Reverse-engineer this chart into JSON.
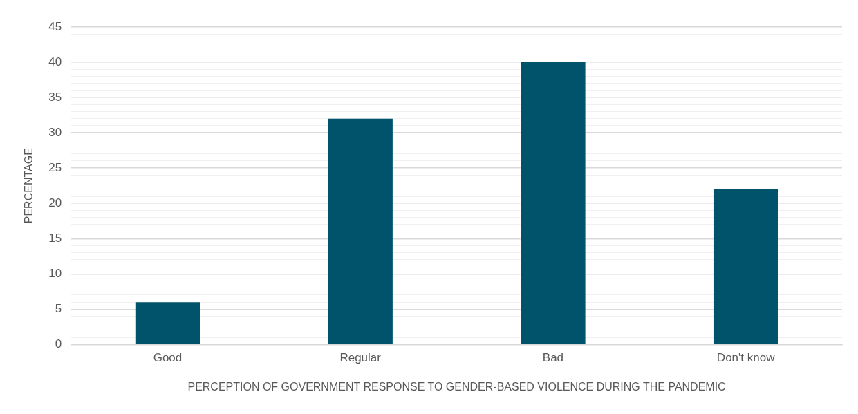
{
  "chart_data": {
    "type": "bar",
    "xlabel": "PERCEPTION OF GOVERNMENT RESPONSE TO GENDER-BASED VIOLENCE DURING THE PANDEMIC",
    "ylabel": "PERCENTAGE",
    "categories": [
      "Good",
      "Regular",
      "Bad",
      "Don't know"
    ],
    "values": [
      6,
      32,
      40,
      22
    ],
    "color": "#00536b",
    "ylim": [
      0,
      45
    ],
    "yticks": [
      0,
      {
        "value": 1,
        "label": null
      },
      {
        "value": 2,
        "label": null
      },
      {
        "value": 3,
        "label": null
      },
      {
        "value": 4,
        "label": null
      },
      5,
      {
        "value": 6,
        "label": null
      },
      {
        "value": 7,
        "label": null
      },
      {
        "value": 8,
        "label": null
      },
      {
        "value": 9,
        "label": null
      },
      10,
      {
        "value": 11,
        "label": null
      },
      {
        "value": 12,
        "label": null
      },
      {
        "value": 13,
        "label": null
      },
      {
        "value": 14,
        "label": null
      },
      15,
      {
        "value": 16,
        "label": null
      },
      {
        "value": 17,
        "label": null
      },
      {
        "value": 18,
        "label": null
      },
      {
        "value": 19,
        "label": null
      },
      20,
      {
        "value": 21,
        "label": null
      },
      {
        "value": 22,
        "label": null
      },
      {
        "value": 23,
        "label": null
      },
      {
        "value": 24,
        "label": null
      },
      25,
      {
        "value": 26,
        "label": null
      },
      {
        "value": 27,
        "label": null
      },
      {
        "value": 28,
        "label": null
      },
      {
        "value": 29,
        "label": null
      },
      30,
      {
        "value": 31,
        "label": null
      },
      {
        "value": 32,
        "label": null
      },
      {
        "value": 33,
        "label": null
      },
      {
        "value": 34,
        "label": null
      },
      35,
      {
        "value": 36,
        "label": null
      },
      {
        "value": 37,
        "label": null
      },
      {
        "value": 38,
        "label": null
      },
      {
        "value": 39,
        "label": null
      },
      40,
      {
        "value": 41,
        "label": null
      },
      {
        "value": 42,
        "label": null
      },
      {
        "value": 43,
        "label": null
      },
      {
        "value": 44,
        "label": null
      },
      45
    ],
    "grid": "y",
    "legend": false
  }
}
